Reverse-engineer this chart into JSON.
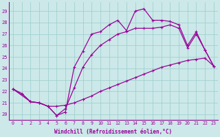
{
  "title": "",
  "xlabel": "Windchill (Refroidissement éolien,°C)",
  "background_color": "#cce8e8",
  "line_color": "#990099",
  "xlim": [
    -0.5,
    23.5
  ],
  "ylim": [
    19.5,
    29.8
  ],
  "yticks": [
    20,
    21,
    22,
    23,
    24,
    25,
    26,
    27,
    28,
    29
  ],
  "xticks": [
    0,
    1,
    2,
    3,
    4,
    5,
    6,
    7,
    8,
    9,
    10,
    11,
    12,
    13,
    14,
    15,
    16,
    17,
    18,
    19,
    20,
    21,
    22,
    23
  ],
  "line1_x": [
    0,
    1,
    2,
    3,
    4,
    5,
    6,
    7,
    8,
    9,
    10,
    11,
    12,
    13,
    14,
    15,
    16,
    17,
    18,
    19,
    20,
    21,
    22,
    23
  ],
  "line1_y": [
    22.2,
    21.8,
    21.1,
    21.0,
    20.7,
    20.7,
    20.8,
    21.0,
    21.3,
    21.6,
    22.0,
    22.3,
    22.6,
    22.9,
    23.2,
    23.5,
    23.8,
    24.1,
    24.3,
    24.5,
    24.7,
    24.8,
    24.9,
    24.2
  ],
  "line2_x": [
    0,
    1,
    2,
    3,
    4,
    5,
    6,
    7,
    8,
    9,
    10,
    11,
    12,
    13,
    14,
    15,
    16,
    17,
    18,
    19,
    20,
    21,
    22,
    23
  ],
  "line2_y": [
    22.2,
    21.8,
    21.1,
    21.0,
    20.7,
    19.9,
    20.2,
    24.1,
    25.5,
    27.0,
    27.2,
    27.8,
    28.2,
    27.3,
    29.0,
    29.2,
    28.2,
    28.2,
    28.1,
    27.8,
    26.0,
    27.2,
    25.6,
    24.2
  ],
  "line3_x": [
    0,
    2,
    3,
    4,
    5,
    6,
    7,
    8,
    9,
    10,
    11,
    12,
    13,
    14,
    15,
    16,
    17,
    18,
    19,
    20,
    21,
    22,
    23
  ],
  "line3_y": [
    22.2,
    21.1,
    21.0,
    20.7,
    19.9,
    20.5,
    22.3,
    24.1,
    25.2,
    26.0,
    26.5,
    27.0,
    27.2,
    27.5,
    27.5,
    27.5,
    27.6,
    27.8,
    27.5,
    25.8,
    27.0,
    25.6,
    24.2
  ],
  "grid_color": "#99cccc",
  "marker": "+"
}
